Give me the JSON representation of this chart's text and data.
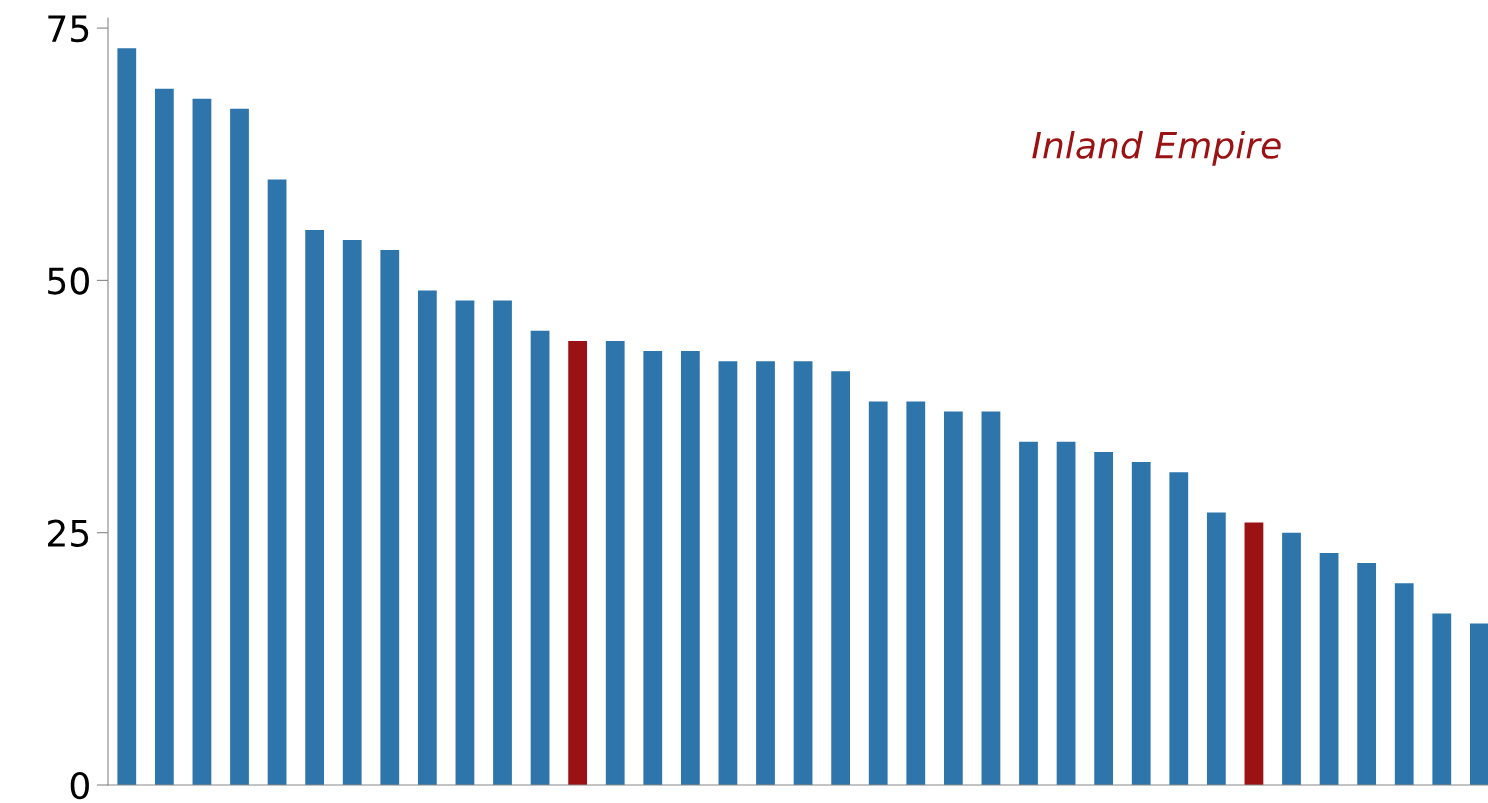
{
  "chart_data": {
    "type": "bar",
    "categories": [
      null,
      null,
      null,
      null,
      null,
      null,
      null,
      null,
      null,
      null,
      null,
      null,
      null,
      null,
      null,
      null,
      null,
      null,
      null,
      null,
      null,
      null,
      null,
      null,
      null,
      null,
      null,
      null,
      null,
      null,
      null,
      null,
      null,
      null,
      null,
      null,
      null
    ],
    "values": [
      73,
      69,
      68,
      67,
      60,
      55,
      54,
      53,
      49,
      48,
      48,
      45,
      44,
      44,
      43,
      43,
      42,
      42,
      42,
      41,
      38,
      38,
      37,
      37,
      34,
      34,
      33,
      32,
      31,
      27,
      26,
      25,
      23,
      22,
      20,
      17,
      16
    ],
    "colors": [
      "#2e75ab",
      "#2e75ab",
      "#2e75ab",
      "#2e75ab",
      "#2e75ab",
      "#2e75ab",
      "#2e75ab",
      "#2e75ab",
      "#2e75ab",
      "#2e75ab",
      "#2e75ab",
      "#2e75ab",
      "#9b1214",
      "#2e75ab",
      "#2e75ab",
      "#2e75ab",
      "#2e75ab",
      "#2e75ab",
      "#2e75ab",
      "#2e75ab",
      "#2e75ab",
      "#2e75ab",
      "#2e75ab",
      "#2e75ab",
      "#2e75ab",
      "#2e75ab",
      "#2e75ab",
      "#2e75ab",
      "#2e75ab",
      "#2e75ab",
      "#9b1214",
      "#2e75ab",
      "#2e75ab",
      "#2e75ab",
      "#2e75ab",
      "#2e75ab",
      "#2e75ab"
    ],
    "ylim": [
      0,
      76
    ],
    "yticks": [
      0,
      25,
      50,
      75
    ],
    "grid": false,
    "legend": false,
    "annotations": [
      "Inland Empire"
    ]
  }
}
